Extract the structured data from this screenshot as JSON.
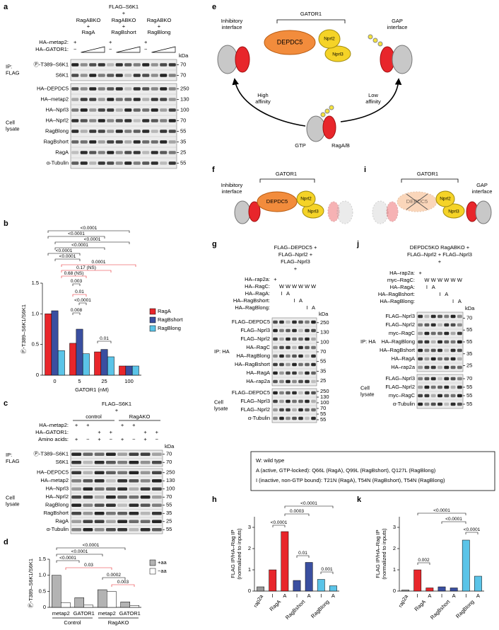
{
  "panels": {
    "a": {
      "label": "a",
      "title": "FLAG–S6K1",
      "plus": "+",
      "groups": [
        [
          "RagABKO",
          "+",
          "RagA"
        ],
        [
          "RagABKO",
          "+",
          "RagBshort"
        ],
        [
          "RagABKO",
          "+",
          "RagBlong"
        ]
      ],
      "conditions": [
        {
          "name": "HA–metap2:",
          "signs": [
            "+",
            "+",
            "+"
          ]
        },
        {
          "name": "HA–GATOR1:",
          "signs": [
            "−",
            "−",
            "−"
          ]
        }
      ],
      "kda_label": "kDa",
      "sections": [
        {
          "group": [
            "IP:",
            "FLAG"
          ],
          "rows": [
            "Ⓟ-T389–S6K1",
            "S6K1"
          ],
          "kda": [
            70,
            70
          ]
        },
        {
          "group": [
            "Cell",
            "lysate"
          ],
          "rows": [
            "HA–DEPDC5",
            "HA–metap2",
            "HA–Nprl3",
            "HA–Nprl2",
            "RagBlong",
            "RagBshort",
            "RagA",
            "α-Tubulin"
          ],
          "kda": [
            250,
            130,
            100,
            70,
            55,
            35,
            25,
            55
          ]
        }
      ]
    },
    "b": {
      "label": "b",
      "type": "bar",
      "categories": [
        "0",
        "5",
        "25",
        "100"
      ],
      "xlabel": "GATOR1 (nM)",
      "ylabel": "Ⓟ-T389–S6K1/S6K1",
      "ylim": [
        0,
        1.5
      ],
      "yticks": [
        0,
        0.5,
        {
          "value": 1,
          "label": "1.0"
        },
        1.5
      ],
      "series": [
        {
          "name": "RagA",
          "color": "#e8262b",
          "values": [
            1.0,
            0.52,
            0.38,
            0.15
          ]
        },
        {
          "name": "RagBshort",
          "color": "#3a4fa0",
          "values": [
            1.05,
            0.75,
            0.42,
            0.15
          ]
        },
        {
          "name": "RagBlong",
          "color": "#5bc4e8",
          "values": [
            0.4,
            0.35,
            0.3,
            0.15
          ]
        }
      ],
      "annotations": [
        {
          "text": "<0.0001",
          "color": "#000000"
        },
        {
          "text": "<0.0001",
          "color": "#000000"
        },
        {
          "text": "<0.0001",
          "color": "#000000"
        },
        {
          "text": "<0.0001",
          "color": "#000000"
        },
        {
          "text": "<0.0001",
          "color": "#000000"
        },
        {
          "text": "<0.0001",
          "color": "#000000"
        },
        {
          "text": "0.0001",
          "color": "#e8262b"
        },
        {
          "text": "0.17 (NS)",
          "color": "#e8262b"
        },
        {
          "text": "0.68 (NS)",
          "color": "#e8262b"
        },
        {
          "text": "0.003",
          "color": "#000000"
        },
        {
          "text": "0.01",
          "color": "#e8262b"
        },
        {
          "text": "<0.0001",
          "color": "#000000"
        },
        {
          "text": "0.008",
          "color": "#000000"
        },
        {
          "text": "0.01",
          "color": "#000000"
        }
      ]
    },
    "c": {
      "label": "c",
      "title": "FLAG–S6K1",
      "plus": "+",
      "groups": [
        [
          "control"
        ],
        [
          "RagAKO"
        ]
      ],
      "conditions": [
        {
          "name": "HA–metap2:",
          "signs": [
            "+",
            "+",
            "+",
            "+"
          ]
        },
        {
          "name": "HA–GATOR1:",
          "signs": [
            "+",
            "+",
            "+",
            "+"
          ]
        },
        {
          "name": "Amino acids:",
          "signs": [
            "+",
            "−",
            "+",
            "−",
            "+",
            "−",
            "+",
            "−"
          ]
        }
      ],
      "kda_label": "kDa",
      "sections": [
        {
          "group": [
            "IP:",
            "FLAG"
          ],
          "rows": [
            "Ⓟ-T389–S6K1",
            "S6K1"
          ],
          "kda": [
            70,
            70
          ]
        },
        {
          "group": [
            "Cell",
            "lysate"
          ],
          "rows": [
            "HA–DEPDC5",
            "HA–metap2",
            "HA–Nprl3",
            "HA–Nprl2",
            "RagBlong",
            "RagBshort",
            "RagA",
            "α-Tubulin"
          ],
          "kda": [
            250,
            130,
            100,
            70,
            55,
            35,
            25,
            55
          ]
        }
      ]
    },
    "d": {
      "label": "d",
      "type": "bar",
      "categories": [
        "metap2",
        "GATOR1",
        "metap2",
        "GATOR1"
      ],
      "groups": [
        "Control",
        "RagAKO"
      ],
      "ylabel": "Ⓟ-T389–S6K1/S6K1",
      "ylim": [
        0,
        1.5
      ],
      "yticks": [
        0,
        0.5,
        {
          "value": 1,
          "label": "1.0"
        },
        1.5
      ],
      "series": [
        {
          "name": "+aa",
          "color": "#b3b3b3",
          "values": [
            1.0,
            0.3,
            0.55,
            0.17
          ]
        },
        {
          "name": "−aa",
          "color": "#ffffff",
          "values": [
            0.15,
            0.07,
            0.5,
            0.06
          ]
        }
      ],
      "annotations": [
        {
          "text": "<0.0001",
          "color": "#000000"
        },
        {
          "text": "<0.0001",
          "color": "#000000"
        },
        {
          "text": "<0.0001",
          "color": "#000000"
        },
        {
          "text": "0.03",
          "color": "#e8262b"
        },
        {
          "text": "0.0002",
          "color": "#000000"
        },
        {
          "text": "0.003",
          "color": "#e8262b"
        }
      ]
    },
    "e": {
      "label": "e",
      "gator": "GATOR1",
      "depdc5": "DEPDC5",
      "nprl2": "Nprl2",
      "nprl3": "Nprl3",
      "inhibitory": [
        "Inhibitory",
        "interface"
      ],
      "gap": [
        "GAP",
        "interface"
      ],
      "high": [
        "High",
        "affinity"
      ],
      "low": [
        "Low",
        "affinity"
      ],
      "gtp": "GTP",
      "rag": "RagA/B"
    },
    "f": {
      "label": "f",
      "gator": "GATOR1",
      "inhibitory": [
        "Inhibitory",
        "interface"
      ],
      "depdc5": "DEPDC5",
      "nprl2": "Nprl2",
      "nprl3": "Nprl3"
    },
    "i": {
      "label": "i",
      "gator": "GATOR1",
      "gap": [
        "GAP",
        "interface"
      ],
      "depdc5": "DEPDC5",
      "nprl2": "Nprl2",
      "nprl3": "Nprl3"
    },
    "g": {
      "label": "g",
      "header": [
        "FLAG–DEPDC5 +",
        "FLAG–Nprl2 +",
        "FLAG–Nprl3",
        "+"
      ],
      "conditions": [
        {
          "name": "HA–rap2a:",
          "signs": [
            "+"
          ]
        },
        {
          "name": "HA–RagC:",
          "signs": [
            "W",
            "W",
            "W",
            "W",
            "W",
            "W"
          ]
        },
        {
          "name": "HA–RagA:",
          "signs": [
            "I",
            "A"
          ]
        },
        {
          "name": "HA–RagBshort:",
          "signs": [
            "I",
            "A"
          ]
        },
        {
          "name": "HA–RagBlong:",
          "signs": [
            "I",
            "A"
          ]
        }
      ],
      "kda_label": "kDa",
      "sections": [
        {
          "group": [
            "IP: HA"
          ],
          "rows": [
            "FLAG–DEPDC5",
            "FLAG–Nprl3",
            "FLAG–Nprl2",
            "HA–RagC",
            "HA–RagBlong",
            "HA–RagBshort",
            "HA–RagA",
            "HA–rap2a"
          ],
          "kda": [
            250,
            130,
            100,
            70,
            55,
            35,
            25
          ]
        },
        {
          "group": [
            "Cell",
            "lysate"
          ],
          "rows": [
            "FLAG–DEPDC5",
            "FLAG–Nprl3",
            "FLAG–Nprl2",
            "α-Tubulin"
          ],
          "kda": [
            250,
            130,
            100,
            70,
            55,
            55
          ]
        }
      ]
    },
    "j": {
      "label": "j",
      "header": [
        "DEPDC5KO RagABKO +",
        "FLAG–Nprl2 + FLAG–Nprl3",
        "+"
      ],
      "conditions": [
        {
          "name": "HA–rap2a:",
          "signs": [
            "+"
          ]
        },
        {
          "name": "myc–RagC:",
          "signs": [
            "W",
            "W",
            "W",
            "W",
            "W",
            "W"
          ]
        },
        {
          "name": "HA–RagA:",
          "signs": [
            "I",
            "A"
          ]
        },
        {
          "name": "HA–RagBshort:",
          "signs": [
            "I",
            "A"
          ]
        },
        {
          "name": "HA–RagBlong:",
          "signs": [
            "I",
            "A"
          ]
        }
      ],
      "kda_label": "kDa",
      "sections": [
        {
          "group": [
            "IP: HA"
          ],
          "rows": [
            "FLAG–Nprl3",
            "FLAG–Nprl2",
            "myc–RagC",
            "HA–RagBlong",
            "HA–RagBshort",
            "HA–RagA",
            "HA–rap2a"
          ],
          "kda": [
            70,
            55,
            55,
            35,
            25
          ]
        },
        {
          "group": [
            "Cell",
            "lysate"
          ],
          "rows": [
            "FLAG–Nprl3",
            "FLAG–Nprl2",
            "myc–RagC",
            "α-Tubulin"
          ],
          "kda": [
            70,
            55,
            55,
            55
          ]
        }
      ]
    },
    "legend": {
      "lines": [
        "W: wild type",
        "A (active, GTP-locked): Q66L (RagA), Q99L (RagBshort), Q127L (RagBlong)",
        "I (inactive, non-GTP bound): T21N (RagA), T54N (RagBshort), T54N (RagBlong)"
      ]
    },
    "h": {
      "label": "h",
      "type": "bar",
      "categories": [
        "rap2a",
        "I",
        "A",
        "I",
        "A",
        "I",
        "A"
      ],
      "groups": [
        "RagA",
        "RagBshort",
        "RagBlong"
      ],
      "values": [
        0.2,
        1.0,
        2.8,
        0.5,
        1.35,
        0.55,
        0.25
      ],
      "colors": [
        "#999999",
        "#e8262b",
        "#e8262b",
        "#3a4fa0",
        "#3a4fa0",
        "#5bc4e8",
        "#5bc4e8"
      ],
      "ylabel": [
        "FLAG IP/HA–Rag IP",
        "(normalized to inputs)"
      ],
      "ylim": [
        0,
        3.5
      ],
      "yticks": [
        0,
        1,
        2,
        3
      ],
      "annotations": [
        {
          "text": "<0.0001",
          "color": "#000000"
        },
        {
          "text": "0.0003",
          "color": "#000000"
        },
        {
          "text": "<0.0001",
          "color": "#000000"
        },
        {
          "text": "0.01",
          "color": "#000000"
        },
        {
          "text": "0.001",
          "color": "#000000"
        }
      ]
    },
    "k": {
      "label": "k",
      "type": "bar",
      "categories": [
        "rap2a",
        "I",
        "A",
        "I",
        "A",
        "I",
        "A"
      ],
      "groups": [
        "RagA",
        "RagBshort",
        "RagBlong"
      ],
      "values": [
        0.05,
        1.0,
        0.15,
        0.2,
        0.15,
        2.4,
        0.7
      ],
      "colors": [
        "#999999",
        "#e8262b",
        "#e8262b",
        "#3a4fa0",
        "#3a4fa0",
        "#5bc4e8",
        "#5bc4e8"
      ],
      "ylabel": [
        "FLAG IP/HA–Rag IP",
        "(normalized to inputs)"
      ],
      "ylim": [
        0,
        3.5
      ],
      "yticks": [
        0,
        1,
        2,
        3
      ],
      "annotations": [
        {
          "text": "0.002",
          "color": "#000000"
        },
        {
          "text": "<0.0001",
          "color": "#000000"
        },
        {
          "text": "<0.0001",
          "color": "#000000"
        },
        {
          "text": "<0.0001",
          "color": "#000000"
        }
      ]
    }
  }
}
